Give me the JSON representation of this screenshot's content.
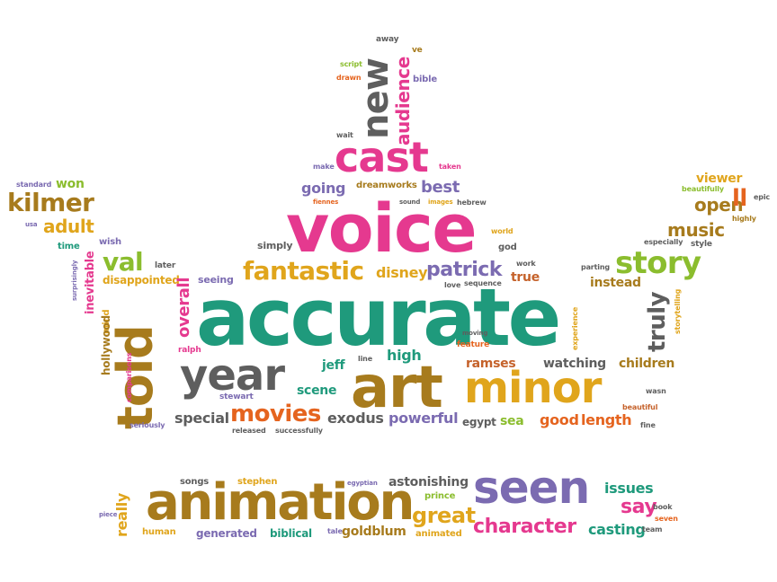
{
  "colors": {
    "pink": "#e5398f",
    "green": "#1f9a7c",
    "brown": "#a77b1d",
    "gold": "#e0a51c",
    "purple": "#7b6bb1",
    "orange": "#e5641f",
    "gray": "#5e5e5e",
    "lime": "#8bbd2e",
    "rust": "#c5622b"
  },
  "words": [
    {
      "text": "away",
      "color": "gray"
    },
    {
      "text": "ve",
      "color": "brown"
    },
    {
      "text": "new",
      "color": "gray"
    },
    {
      "text": "audience",
      "color": "pink"
    },
    {
      "text": "script",
      "color": "lime"
    },
    {
      "text": "drawn",
      "color": "orange"
    },
    {
      "text": "bible",
      "color": "purple"
    },
    {
      "text": "wait",
      "color": "gray"
    },
    {
      "text": "cast",
      "color": "pink"
    },
    {
      "text": "make",
      "color": "purple"
    },
    {
      "text": "taken",
      "color": "pink"
    },
    {
      "text": "going",
      "color": "purple"
    },
    {
      "text": "dreamworks",
      "color": "brown"
    },
    {
      "text": "best",
      "color": "purple"
    },
    {
      "text": "fiennes",
      "color": "orange"
    },
    {
      "text": "sound",
      "color": "gray"
    },
    {
      "text": "images",
      "color": "gold"
    },
    {
      "text": "hebrew",
      "color": "gray"
    },
    {
      "text": "voice",
      "color": "pink"
    },
    {
      "text": "standard",
      "color": "purple"
    },
    {
      "text": "won",
      "color": "lime"
    },
    {
      "text": "kilmer",
      "color": "brown"
    },
    {
      "text": "adult",
      "color": "gold"
    },
    {
      "text": "usa",
      "color": "purple"
    },
    {
      "text": "time",
      "color": "green"
    },
    {
      "text": "wish",
      "color": "purple"
    },
    {
      "text": "val",
      "color": "lime"
    },
    {
      "text": "simply",
      "color": "gray"
    },
    {
      "text": "later",
      "color": "gray"
    },
    {
      "text": "disappointed",
      "color": "gold"
    },
    {
      "text": "fantastic",
      "color": "gold"
    },
    {
      "text": "disney",
      "color": "gold"
    },
    {
      "text": "patrick",
      "color": "purple"
    },
    {
      "text": "true",
      "color": "rust"
    },
    {
      "text": "world",
      "color": "gold"
    },
    {
      "text": "god",
      "color": "gray"
    },
    {
      "text": "work",
      "color": "gray"
    },
    {
      "text": "love",
      "color": "gray"
    },
    {
      "text": "sequence",
      "color": "gray"
    },
    {
      "text": "viewer",
      "color": "gold"
    },
    {
      "text": "beautifully",
      "color": "lime"
    },
    {
      "text": "epic",
      "color": "gray"
    },
    {
      "text": "open",
      "color": "brown"
    },
    {
      "text": "ll",
      "color": "orange"
    },
    {
      "text": "highly",
      "color": "brown"
    },
    {
      "text": "music",
      "color": "brown"
    },
    {
      "text": "especially",
      "color": "gray"
    },
    {
      "text": "style",
      "color": "gray"
    },
    {
      "text": "story",
      "color": "lime"
    },
    {
      "text": "parting",
      "color": "gray"
    },
    {
      "text": "instead",
      "color": "brown"
    },
    {
      "text": "seeing",
      "color": "purple"
    },
    {
      "text": "overall",
      "color": "pink"
    },
    {
      "text": "truly",
      "color": "gray"
    },
    {
      "text": "storytelling",
      "color": "gold"
    },
    {
      "text": "accurate",
      "color": "green"
    },
    {
      "text": "told",
      "color": "brown"
    },
    {
      "text": "inevitable",
      "color": "pink"
    },
    {
      "text": "surprisingly",
      "color": "purple"
    },
    {
      "text": "mind",
      "color": "gold"
    },
    {
      "text": "hollywood",
      "color": "brown"
    },
    {
      "text": "ralph",
      "color": "pink"
    },
    {
      "text": "experience",
      "color": "gold"
    },
    {
      "text": "moving",
      "color": "gray"
    },
    {
      "text": "feature",
      "color": "orange"
    },
    {
      "text": "year",
      "color": "gray"
    },
    {
      "text": "jeff",
      "color": "green"
    },
    {
      "text": "line",
      "color": "gray"
    },
    {
      "text": "high",
      "color": "green"
    },
    {
      "text": "ramses",
      "color": "rust"
    },
    {
      "text": "watching",
      "color": "gray"
    },
    {
      "text": "children",
      "color": "brown"
    },
    {
      "text": "comparisons",
      "color": "pink"
    },
    {
      "text": "art",
      "color": "brown"
    },
    {
      "text": "minor",
      "color": "gold"
    },
    {
      "text": "stewart",
      "color": "purple"
    },
    {
      "text": "scene",
      "color": "green"
    },
    {
      "text": "wasn",
      "color": "gray"
    },
    {
      "text": "beautiful",
      "color": "rust"
    },
    {
      "text": "special",
      "color": "gray"
    },
    {
      "text": "movies",
      "color": "orange"
    },
    {
      "text": "exodus",
      "color": "gray"
    },
    {
      "text": "powerful",
      "color": "purple"
    },
    {
      "text": "egypt",
      "color": "gray"
    },
    {
      "text": "sea",
      "color": "lime"
    },
    {
      "text": "good",
      "color": "orange"
    },
    {
      "text": "length",
      "color": "orange"
    },
    {
      "text": "seriously",
      "color": "purple"
    },
    {
      "text": "released",
      "color": "gray"
    },
    {
      "text": "successfully",
      "color": "gray"
    },
    {
      "text": "fine",
      "color": "gray"
    },
    {
      "text": "songs",
      "color": "gray"
    },
    {
      "text": "stephen",
      "color": "gold"
    },
    {
      "text": "egyptian",
      "color": "purple"
    },
    {
      "text": "astonishing",
      "color": "gray"
    },
    {
      "text": "prince",
      "color": "lime"
    },
    {
      "text": "issues",
      "color": "green"
    },
    {
      "text": "seen",
      "color": "purple"
    },
    {
      "text": "really",
      "color": "gold"
    },
    {
      "text": "animation",
      "color": "brown"
    },
    {
      "text": "say",
      "color": "pink"
    },
    {
      "text": "book",
      "color": "gray"
    },
    {
      "text": "seven",
      "color": "orange"
    },
    {
      "text": "piece",
      "color": "purple"
    },
    {
      "text": "great",
      "color": "gold"
    },
    {
      "text": "character",
      "color": "pink"
    },
    {
      "text": "casting",
      "color": "green"
    },
    {
      "text": "team",
      "color": "gray"
    },
    {
      "text": "human",
      "color": "gold"
    },
    {
      "text": "generated",
      "color": "purple"
    },
    {
      "text": "biblical",
      "color": "green"
    },
    {
      "text": "tale",
      "color": "purple"
    },
    {
      "text": "goldblum",
      "color": "brown"
    },
    {
      "text": "animated",
      "color": "gold"
    }
  ]
}
